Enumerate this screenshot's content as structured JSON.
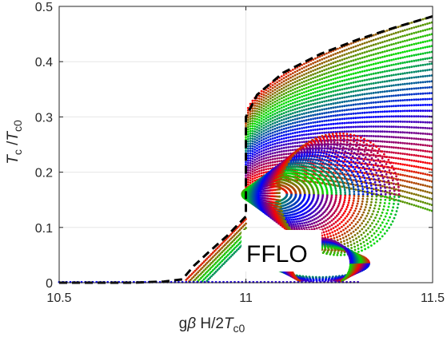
{
  "chart_data": {
    "type": "scatter",
    "xlabel": {
      "prefix": "g",
      "beta": "β",
      "mid": " H/2",
      "T": "T",
      "sub": "c0"
    },
    "ylabel": {
      "T": "T",
      "sub1": "c",
      "slash": " /",
      "T2": "T",
      "sub2": "c0"
    },
    "xlim": [
      10.5,
      11.5
    ],
    "ylim": [
      0,
      0.5
    ],
    "x_ticks": [
      10.5,
      11,
      11.5
    ],
    "x_tick_labels": [
      "10.5",
      "11",
      "11.5"
    ],
    "y_ticks": [
      0,
      0.1,
      0.2,
      0.3,
      0.4,
      0.5
    ],
    "y_tick_labels": [
      "0",
      "0.1",
      "0.2",
      "0.3",
      "0.4",
      "0.5"
    ],
    "grid": true,
    "annotation": {
      "text": "FFLO",
      "x": 11.06,
      "y": 0.06
    },
    "phase_boundary": {
      "style": "black dashed",
      "points": [
        [
          10.5,
          0.0
        ],
        [
          10.6,
          0.0
        ],
        [
          10.7,
          0.0
        ],
        [
          10.78,
          0.002
        ],
        [
          10.83,
          0.006
        ],
        [
          10.86,
          0.03
        ],
        [
          10.9,
          0.055
        ],
        [
          10.95,
          0.085
        ],
        [
          11.0,
          0.12
        ],
        [
          11.0,
          0.3
        ],
        [
          11.03,
          0.34
        ],
        [
          11.1,
          0.38
        ],
        [
          11.2,
          0.414
        ],
        [
          11.3,
          0.44
        ],
        [
          11.4,
          0.462
        ],
        [
          11.5,
          0.482
        ]
      ]
    },
    "colors": {
      "red": "#ff0000",
      "green": "#00e000",
      "blue": "#0000ff",
      "boundary": "#000000"
    }
  }
}
